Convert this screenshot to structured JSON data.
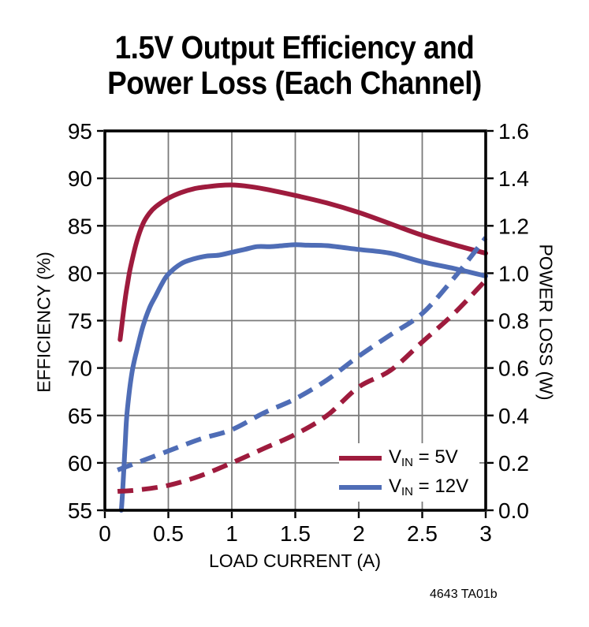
{
  "title": {
    "line1": "1.5V Output Efficiency and",
    "line2": "Power Loss (Each Channel)"
  },
  "footer": "4643 TA01b",
  "colors": {
    "vin5": "#9E1B3D",
    "vin12": "#4F6DB6",
    "grid": "#7a7a7a",
    "frame": "#000000"
  },
  "axes": {
    "x": {
      "label": "LOAD CURRENT (A)",
      "min": 0,
      "max": 3,
      "ticks": [
        0,
        0.5,
        1,
        1.5,
        2,
        2.5,
        3
      ],
      "tick_labels": [
        "0",
        "0.5",
        "1",
        "1.5",
        "2",
        "2.5",
        "3"
      ]
    },
    "y_left": {
      "label": "EFFICIENCY (%)",
      "min": 55,
      "max": 95,
      "ticks": [
        95,
        90,
        85,
        80,
        75,
        70,
        65,
        60,
        55
      ],
      "tick_labels": [
        "95",
        "90",
        "85",
        "80",
        "75",
        "70",
        "65",
        "60",
        "55"
      ]
    },
    "y_right": {
      "label": "POWER LOSS (W)",
      "min": 0,
      "max": 1.6,
      "ticks": [
        1.6,
        1.4,
        1.2,
        1.0,
        0.8,
        0.6,
        0.4,
        0.2,
        0.0
      ],
      "tick_labels": [
        "1.6",
        "1.4",
        "1.2",
        "1.0",
        "0.8",
        "0.6",
        "0.4",
        "0.2",
        "0.0"
      ]
    }
  },
  "legend": [
    {
      "series": "vin5",
      "v": "V",
      "sub": "IN",
      "rest": " = 5V"
    },
    {
      "series": "vin12",
      "v": "V",
      "sub": "IN",
      "rest": " = 12V"
    }
  ],
  "chart_data": {
    "type": "line",
    "title": "1.5V Output Efficiency and Power Loss (Each Channel)",
    "xlabel": "LOAD CURRENT (A)",
    "ylabel_left": "EFFICIENCY (%)",
    "ylabel_right": "POWER LOSS (W)",
    "x_range": [
      0,
      3
    ],
    "y_left_range": [
      55,
      95
    ],
    "y_right_range": [
      0,
      1.6
    ],
    "grid": true,
    "legend_position": "inside-bottom-right",
    "series": [
      {
        "name": "VIN = 5V efficiency",
        "axis": "left",
        "style": "solid",
        "color_key": "vin5",
        "points": [
          [
            0.12,
            73.0
          ],
          [
            0.14,
            75.2
          ],
          [
            0.16,
            77.3
          ],
          [
            0.18,
            79.0
          ],
          [
            0.2,
            80.5
          ],
          [
            0.25,
            83.3
          ],
          [
            0.3,
            85.2
          ],
          [
            0.35,
            86.3
          ],
          [
            0.4,
            87.0
          ],
          [
            0.5,
            87.9
          ],
          [
            0.6,
            88.5
          ],
          [
            0.7,
            88.9
          ],
          [
            0.8,
            89.1
          ],
          [
            0.9,
            89.25
          ],
          [
            1.0,
            89.3
          ],
          [
            1.1,
            89.2
          ],
          [
            1.25,
            88.9
          ],
          [
            1.5,
            88.2
          ],
          [
            1.75,
            87.4
          ],
          [
            2.0,
            86.4
          ],
          [
            2.25,
            85.2
          ],
          [
            2.5,
            84.0
          ],
          [
            2.75,
            83.0
          ],
          [
            3.0,
            82.1
          ]
        ]
      },
      {
        "name": "VIN = 12V efficiency",
        "axis": "left",
        "style": "solid",
        "color_key": "vin12",
        "points": [
          [
            0.13,
            55.0
          ],
          [
            0.14,
            57.0
          ],
          [
            0.15,
            59.5
          ],
          [
            0.16,
            62.0
          ],
          [
            0.17,
            64.5
          ],
          [
            0.18,
            66.0
          ],
          [
            0.2,
            68.3
          ],
          [
            0.22,
            70.0
          ],
          [
            0.25,
            71.8
          ],
          [
            0.3,
            74.4
          ],
          [
            0.35,
            76.3
          ],
          [
            0.4,
            77.6
          ],
          [
            0.45,
            78.9
          ],
          [
            0.5,
            79.9
          ],
          [
            0.6,
            81.0
          ],
          [
            0.7,
            81.5
          ],
          [
            0.8,
            81.8
          ],
          [
            0.9,
            81.9
          ],
          [
            1.0,
            82.2
          ],
          [
            1.1,
            82.5
          ],
          [
            1.2,
            82.8
          ],
          [
            1.3,
            82.8
          ],
          [
            1.4,
            82.9
          ],
          [
            1.5,
            83.0
          ],
          [
            1.6,
            82.95
          ],
          [
            1.75,
            82.9
          ],
          [
            2.0,
            82.5
          ],
          [
            2.25,
            82.1
          ],
          [
            2.5,
            81.2
          ],
          [
            2.75,
            80.5
          ],
          [
            3.0,
            79.7
          ]
        ]
      },
      {
        "name": "VIN = 12V power loss",
        "axis": "right",
        "style": "dashed",
        "color_key": "vin12",
        "points": [
          [
            0.1,
            0.17
          ],
          [
            0.25,
            0.2
          ],
          [
            0.5,
            0.25
          ],
          [
            0.75,
            0.3
          ],
          [
            1.0,
            0.34
          ],
          [
            1.25,
            0.41
          ],
          [
            1.5,
            0.47
          ],
          [
            1.75,
            0.55
          ],
          [
            2.0,
            0.65
          ],
          [
            2.25,
            0.74
          ],
          [
            2.5,
            0.83
          ],
          [
            2.75,
            0.98
          ],
          [
            3.0,
            1.15
          ]
        ]
      },
      {
        "name": "VIN = 5V power loss",
        "axis": "right",
        "style": "dashed",
        "color_key": "vin5",
        "points": [
          [
            0.1,
            0.08
          ],
          [
            0.25,
            0.085
          ],
          [
            0.5,
            0.105
          ],
          [
            0.75,
            0.145
          ],
          [
            1.0,
            0.2
          ],
          [
            1.25,
            0.26
          ],
          [
            1.5,
            0.32
          ],
          [
            1.75,
            0.4
          ],
          [
            2.0,
            0.52
          ],
          [
            2.25,
            0.59
          ],
          [
            2.5,
            0.71
          ],
          [
            2.75,
            0.83
          ],
          [
            3.0,
            0.97
          ]
        ]
      }
    ]
  }
}
